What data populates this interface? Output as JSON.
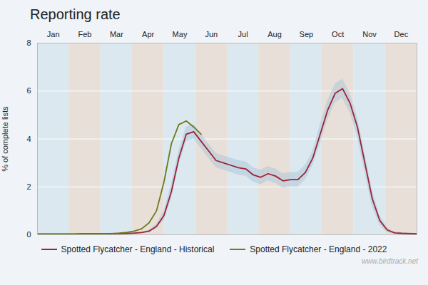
{
  "chart_data": {
    "type": "line",
    "title": "Reporting rate",
    "ylabel": "% of complete lists",
    "annotations": [
      "www.birdtrack.net"
    ],
    "xlim": [
      0,
      52
    ],
    "xticks": [
      {
        "value": 2.165,
        "label": "Jan"
      },
      {
        "value": 6.5,
        "label": "Feb"
      },
      {
        "value": 10.835,
        "label": "Mar"
      },
      {
        "value": 15.165,
        "label": "Apr"
      },
      {
        "value": 19.5,
        "label": "May"
      },
      {
        "value": 23.835,
        "label": "Jun"
      },
      {
        "value": 28.165,
        "label": "Jul"
      },
      {
        "value": 32.5,
        "label": "Aug"
      },
      {
        "value": 36.835,
        "label": "Sep"
      },
      {
        "value": 41.165,
        "label": "Oct"
      },
      {
        "value": 45.5,
        "label": "Nov"
      },
      {
        "value": 49.835,
        "label": "Dec"
      }
    ],
    "ylim": [
      0,
      8
    ],
    "yticks": [
      0,
      2,
      4,
      6,
      8
    ],
    "grid": true,
    "legend": "bottom",
    "bands": [
      {
        "start": 0,
        "end": 4.33,
        "color": "#dce8f0"
      },
      {
        "start": 4.33,
        "end": 8.67,
        "color": "#e8e0d8"
      },
      {
        "start": 8.67,
        "end": 13,
        "color": "#dce8f0"
      },
      {
        "start": 13,
        "end": 17.33,
        "color": "#e8e0d8"
      },
      {
        "start": 17.33,
        "end": 21.67,
        "color": "#dce8f0"
      },
      {
        "start": 21.67,
        "end": 26,
        "color": "#e8e0d8"
      },
      {
        "start": 26,
        "end": 30.33,
        "color": "#dce8f0"
      },
      {
        "start": 30.33,
        "end": 34.67,
        "color": "#e8e0d8"
      },
      {
        "start": 34.67,
        "end": 39,
        "color": "#dce8f0"
      },
      {
        "start": 39,
        "end": 43.33,
        "color": "#e8e0d8"
      },
      {
        "start": 43.33,
        "end": 47.67,
        "color": "#dce8f0"
      },
      {
        "start": 47.67,
        "end": 52,
        "color": "#e8e0d8"
      }
    ],
    "series": [
      {
        "name": "Spotted Flycatcher - England - Historical",
        "color": "#9b2335",
        "x": [
          0,
          1.019608,
          2.039216,
          3.058824,
          4.078431,
          5.098039,
          6.117647,
          7.137255,
          8.156863,
          9.176471,
          10.196078,
          11.215686,
          12.235294,
          13.254902,
          14.27451,
          15.294118,
          16.313725,
          17.333333,
          18.352941,
          19.372549,
          20.392157,
          21.411765,
          22.431373,
          23.45098,
          24.470588,
          25.490196,
          26.509804,
          27.529412,
          28.54902,
          29.568627,
          30.588235,
          31.607843,
          32.627451,
          33.647059,
          34.666667,
          35.686275,
          36.705882,
          37.72549,
          38.745098,
          39.764706,
          40.784314,
          41.803922,
          42.823529,
          43.843137,
          44.862745,
          45.882353,
          46.901961,
          47.921569,
          48.941176,
          49.960784,
          50.980392,
          52
        ],
        "values": [
          0.03,
          0.03,
          0.03,
          0.03,
          0.03,
          0.03,
          0.04,
          0.04,
          0.04,
          0.04,
          0.05,
          0.05,
          0.06,
          0.07,
          0.09,
          0.15,
          0.35,
          0.8,
          1.8,
          3.2,
          4.2,
          4.3,
          3.9,
          3.5,
          3.1,
          3.0,
          2.9,
          2.8,
          2.75,
          2.5,
          2.4,
          2.55,
          2.45,
          2.25,
          2.3,
          2.3,
          2.6,
          3.2,
          4.2,
          5.2,
          5.9,
          6.1,
          5.5,
          4.5,
          3.0,
          1.5,
          0.6,
          0.2,
          0.08,
          0.06,
          0.05,
          0.04
        ],
        "upper": [
          0.05,
          0.05,
          0.05,
          0.05,
          0.05,
          0.05,
          0.06,
          0.06,
          0.06,
          0.06,
          0.07,
          0.07,
          0.09,
          0.1,
          0.12,
          0.2,
          0.45,
          1.0,
          2.1,
          3.5,
          4.5,
          4.6,
          4.2,
          3.8,
          3.4,
          3.3,
          3.2,
          3.1,
          3.05,
          2.8,
          2.7,
          2.85,
          2.75,
          2.55,
          2.6,
          2.6,
          2.9,
          3.5,
          4.6,
          5.6,
          6.3,
          6.5,
          5.9,
          4.9,
          3.4,
          1.85,
          0.8,
          0.3,
          0.13,
          0.1,
          0.08,
          0.06
        ],
        "lower": [
          0.01,
          0.01,
          0.01,
          0.01,
          0.01,
          0.01,
          0.02,
          0.02,
          0.02,
          0.02,
          0.03,
          0.03,
          0.03,
          0.04,
          0.06,
          0.1,
          0.25,
          0.6,
          1.5,
          2.9,
          3.9,
          4.0,
          3.6,
          3.2,
          2.8,
          2.7,
          2.6,
          2.5,
          2.45,
          2.2,
          2.1,
          2.25,
          2.15,
          1.95,
          2.0,
          2.0,
          2.3,
          2.9,
          3.8,
          4.8,
          5.5,
          5.7,
          5.1,
          4.1,
          2.6,
          1.15,
          0.4,
          0.1,
          0.03,
          0.02,
          0.02,
          0.02
        ]
      },
      {
        "name": "Spotted Flycatcher - England - 2022",
        "color": "#6b7a1a",
        "x": [
          0,
          1.019608,
          2.039216,
          3.058824,
          4.078431,
          5.098039,
          6.117647,
          7.137255,
          8.156863,
          9.176471,
          10.196078,
          11.215686,
          12.235294,
          13.254902,
          14.27451,
          15.294118,
          16.313725,
          17.333333,
          18.352941,
          19.372549,
          20.392157,
          21.411765,
          22.431373
        ],
        "values": [
          0.02,
          0.02,
          0.02,
          0.02,
          0.02,
          0.02,
          0.03,
          0.03,
          0.03,
          0.04,
          0.05,
          0.07,
          0.1,
          0.15,
          0.25,
          0.5,
          1.0,
          2.2,
          3.8,
          4.6,
          4.75,
          4.5,
          4.2
        ]
      }
    ]
  }
}
